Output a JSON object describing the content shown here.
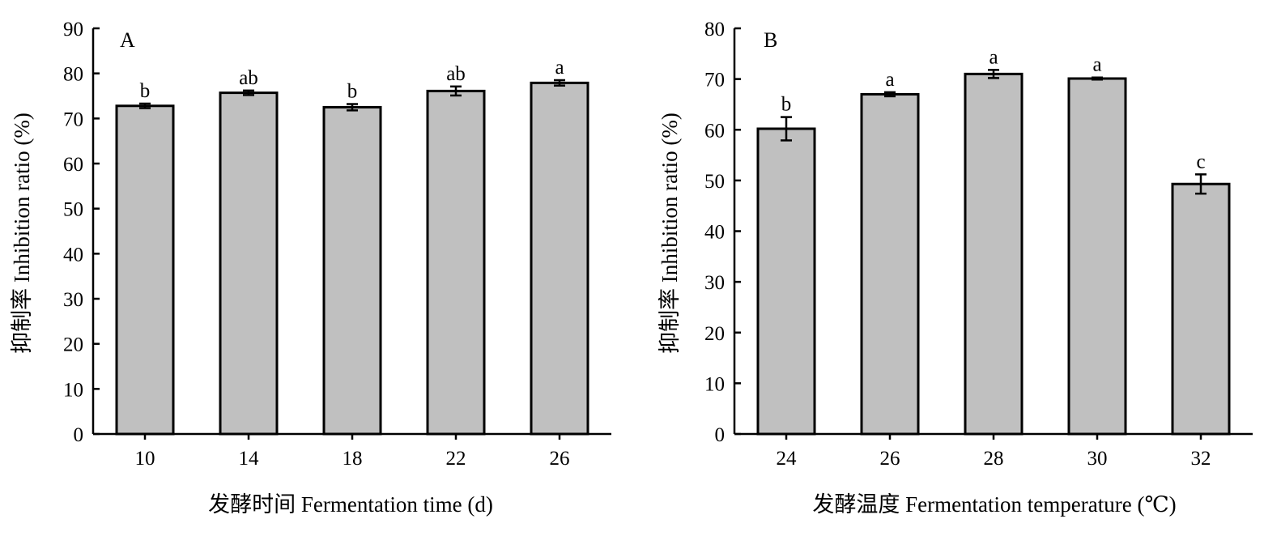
{
  "chart_data": [
    {
      "type": "bar",
      "panel": "A",
      "xlabel": "发酵时间 Fermentation time (d)",
      "ylabel": "抑制率 Inhibition ratio (%)",
      "ylim": [
        0,
        90
      ],
      "yticks": [
        0,
        10,
        20,
        30,
        40,
        50,
        60,
        70,
        80,
        90
      ],
      "categories": [
        "10",
        "14",
        "18",
        "22",
        "26"
      ],
      "values": [
        72.8,
        75.7,
        72.5,
        76.1,
        77.9
      ],
      "errors": [
        0.5,
        0.5,
        0.7,
        1.0,
        0.6
      ],
      "significance": [
        "b",
        "ab",
        "b",
        "ab",
        "a"
      ],
      "grid": false
    },
    {
      "type": "bar",
      "panel": "B",
      "xlabel": "发酵温度 Fermentation temperature (℃)",
      "ylabel": "抑制率 Inhibition ratio (%)",
      "ylim": [
        0,
        80
      ],
      "yticks": [
        0,
        10,
        20,
        30,
        40,
        50,
        60,
        70,
        80
      ],
      "categories": [
        "24",
        "26",
        "28",
        "30",
        "32"
      ],
      "values": [
        60.2,
        67.0,
        71.0,
        70.1,
        49.3
      ],
      "errors": [
        2.3,
        0.4,
        0.8,
        0.2,
        1.9
      ],
      "significance": [
        "b",
        "a",
        "a",
        "a",
        "c"
      ],
      "grid": false
    }
  ]
}
